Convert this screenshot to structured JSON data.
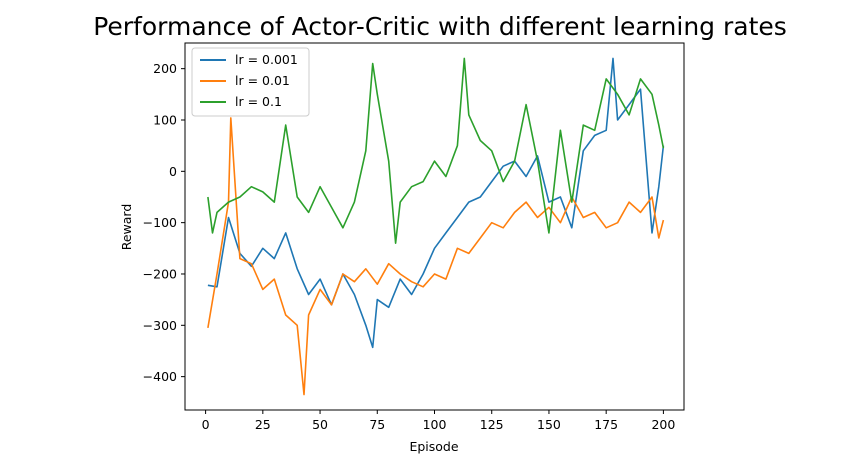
{
  "chart_data": {
    "type": "line",
    "title": "Performance of Actor-Critic with different learning rates",
    "xlabel": "Episode",
    "ylabel": "Reward",
    "xlim": [
      -9,
      209
    ],
    "ylim": [
      -465,
      250
    ],
    "xticks": [
      0,
      25,
      50,
      75,
      100,
      125,
      150,
      175,
      200
    ],
    "yticks": [
      -400,
      -300,
      -200,
      -100,
      0,
      100,
      200
    ],
    "grid": false,
    "legend_position": "upper left",
    "series": [
      {
        "name": "lr = 0.001",
        "color": "#1f77b4",
        "x": [
          1,
          5,
          10,
          15,
          20,
          25,
          30,
          35,
          40,
          45,
          50,
          55,
          60,
          65,
          70,
          73,
          75,
          80,
          85,
          90,
          95,
          100,
          105,
          110,
          115,
          120,
          125,
          130,
          135,
          140,
          145,
          150,
          155,
          160,
          165,
          170,
          175,
          178,
          180,
          185,
          190,
          195,
          198,
          200
        ],
        "y": [
          -222,
          -225,
          -90,
          -160,
          -185,
          -150,
          -170,
          -120,
          -190,
          -240,
          -210,
          -260,
          -200,
          -240,
          -300,
          -343,
          -250,
          -265,
          -210,
          -240,
          -200,
          -150,
          -120,
          -90,
          -60,
          -50,
          -20,
          10,
          20,
          -10,
          30,
          -60,
          -50,
          -110,
          40,
          70,
          80,
          220,
          100,
          130,
          160,
          -120,
          -30,
          50
        ]
      },
      {
        "name": "lr = 0.01",
        "color": "#ff7f0e",
        "x": [
          1,
          5,
          10,
          11,
          15,
          20,
          25,
          30,
          35,
          40,
          43,
          45,
          50,
          55,
          60,
          65,
          70,
          75,
          80,
          85,
          90,
          95,
          100,
          105,
          110,
          115,
          120,
          125,
          130,
          135,
          140,
          145,
          150,
          155,
          160,
          165,
          170,
          175,
          180,
          185,
          190,
          195,
          198,
          200
        ],
        "y": [
          -305,
          -200,
          -60,
          104,
          -170,
          -180,
          -230,
          -210,
          -280,
          -300,
          -435,
          -280,
          -230,
          -260,
          -200,
          -215,
          -190,
          -220,
          -180,
          -200,
          -215,
          -225,
          -200,
          -210,
          -150,
          -160,
          -130,
          -100,
          -110,
          -80,
          -60,
          -90,
          -70,
          -100,
          -50,
          -90,
          -80,
          -110,
          -100,
          -60,
          -80,
          -50,
          -130,
          -95
        ]
      },
      {
        "name": "lr = 0.1",
        "color": "#2ca02c",
        "x": [
          1,
          3,
          5,
          10,
          15,
          20,
          25,
          30,
          35,
          40,
          45,
          50,
          55,
          60,
          65,
          70,
          73,
          75,
          80,
          83,
          85,
          90,
          95,
          100,
          105,
          110,
          113,
          115,
          120,
          125,
          130,
          135,
          140,
          145,
          150,
          155,
          160,
          165,
          170,
          175,
          180,
          185,
          190,
          195,
          198,
          200
        ],
        "y": [
          -50,
          -120,
          -80,
          -60,
          -50,
          -30,
          -40,
          -60,
          90,
          -50,
          -80,
          -30,
          -70,
          -110,
          -60,
          40,
          210,
          150,
          20,
          -140,
          -60,
          -30,
          -20,
          20,
          -10,
          50,
          220,
          110,
          60,
          40,
          -20,
          20,
          130,
          20,
          -120,
          80,
          -60,
          90,
          80,
          180,
          150,
          110,
          180,
          150,
          90,
          45
        ]
      }
    ]
  }
}
